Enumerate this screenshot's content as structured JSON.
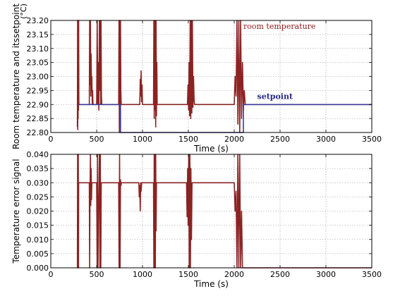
{
  "chart_data": [
    {
      "type": "line",
      "title": "",
      "xlabel": "Time (s)",
      "ylabel": "Room temperature and itssetpoint",
      "ylabel_unit": "(°C)",
      "xlim": [
        0,
        3500
      ],
      "ylim": [
        22.8,
        23.2
      ],
      "xticks": [
        "0",
        "500",
        "1000",
        "1500",
        "2000",
        "2500",
        "3000",
        "3500"
      ],
      "yticks": [
        "22.80",
        "22.85",
        "22.90",
        "22.95",
        "23.00",
        "23.05",
        "23.10",
        "23.15",
        "23.20"
      ],
      "grid": true,
      "annotations": [
        {
          "text": "room temperature",
          "color": "#8b1a1a",
          "x": 2100,
          "y": 23.17
        },
        {
          "text": "setpoint",
          "color": "#2a2a8a",
          "x": 2250,
          "y": 22.92
        }
      ],
      "series": [
        {
          "name": "room temperature",
          "color": "#8b2323",
          "x": [
            290,
            292,
            294,
            296,
            298,
            300,
            302,
            304,
            306,
            420,
            424,
            428,
            432,
            436,
            440,
            444,
            448,
            452,
            456,
            460,
            500,
            506,
            512,
            518,
            524,
            530,
            536,
            540,
            544,
            548,
            552,
            556,
            740,
            744,
            748,
            752,
            756,
            760,
            764,
            768,
            970,
            975,
            980,
            985,
            990,
            995,
            1000,
            1120,
            1124,
            1128,
            1132,
            1136,
            1140,
            1144,
            1148,
            1152,
            1156,
            1160,
            1164,
            1490,
            1496,
            1502,
            1508,
            1514,
            1520,
            1526,
            1532,
            1538,
            1544,
            1550,
            1556,
            1562,
            1568,
            2000,
            2010,
            2020,
            2030,
            2040,
            2050,
            2060,
            2070,
            2080,
            2090,
            2100,
            2110,
            2120,
            3500
          ],
          "y": [
            22.82,
            23.2,
            22.81,
            23.2,
            22.85,
            23.2,
            22.88,
            23.2,
            22.9,
            22.9,
            23.2,
            22.97,
            23.2,
            22.93,
            23.08,
            22.95,
            23.0,
            22.9,
            22.95,
            22.9,
            22.9,
            23.2,
            22.9,
            23.05,
            22.88,
            23.2,
            22.95,
            23.2,
            22.9,
            23.2,
            22.93,
            22.9,
            22.9,
            23.2,
            22.8,
            23.2,
            22.85,
            23.2,
            22.95,
            22.9,
            22.9,
            22.99,
            22.93,
            23.02,
            22.91,
            22.97,
            22.9,
            22.9,
            23.2,
            22.85,
            23.2,
            22.88,
            23.2,
            22.82,
            23.2,
            22.86,
            23.05,
            22.9,
            22.9,
            22.9,
            22.97,
            22.88,
            23.05,
            22.86,
            23.2,
            22.85,
            23.2,
            22.87,
            23.2,
            22.89,
            23.0,
            22.92,
            22.9,
            22.9,
            23.0,
            22.93,
            23.2,
            22.83,
            23.2,
            22.8,
            23.2,
            22.85,
            23.05,
            22.88,
            22.95,
            22.9,
            22.9
          ]
        },
        {
          "name": "setpoint",
          "color": "#3b3b9a",
          "x": [
            300,
            760,
            760,
            2100,
            2100,
            3500
          ],
          "y": [
            22.9,
            22.9,
            22.8,
            22.8,
            22.9,
            22.9
          ]
        }
      ]
    },
    {
      "type": "line",
      "title": "",
      "xlabel": "Time (s)",
      "ylabel": "Temperature error signal",
      "xlim": [
        0,
        3500
      ],
      "ylim": [
        0,
        0.04
      ],
      "xticks": [
        "0",
        "500",
        "1000",
        "1500",
        "2000",
        "2500",
        "3000",
        "3500"
      ],
      "yticks": [
        "0.000",
        "0.005",
        "0.010",
        "0.015",
        "0.020",
        "0.025",
        "0.030",
        "0.035",
        "0.040"
      ],
      "grid": true,
      "series": [
        {
          "name": "",
          "color": "#8b2323",
          "x": [
            290,
            292,
            294,
            296,
            298,
            300,
            302,
            304,
            420,
            424,
            428,
            432,
            436,
            440,
            444,
            448,
            452,
            500,
            505,
            510,
            515,
            520,
            525,
            530,
            535,
            540,
            545,
            550,
            740,
            745,
            750,
            755,
            760,
            765,
            770,
            780,
            960,
            965,
            970,
            975,
            980,
            985,
            990,
            1000,
            1120,
            1124,
            1128,
            1132,
            1136,
            1140,
            1144,
            1148,
            1152,
            1160,
            1480,
            1486,
            1492,
            1498,
            1504,
            1510,
            1516,
            1522,
            1528,
            1534,
            1540,
            1560,
            2000,
            2010,
            2020,
            2030,
            2040,
            2050,
            2060,
            2070,
            2080,
            2090,
            2100,
            3500
          ],
          "y": [
            0.0,
            0.04,
            0.0,
            0.04,
            0.0,
            0.04,
            0.0,
            0.03,
            0.03,
            0.0,
            0.027,
            0.04,
            0.022,
            0.035,
            0.024,
            0.03,
            0.03,
            0.03,
            0.0,
            0.04,
            0.0,
            0.02,
            0.027,
            0.04,
            0.0,
            0.04,
            0.0,
            0.03,
            0.03,
            0.0,
            0.04,
            0.0,
            0.031,
            0.029,
            0.03,
            0.03,
            0.03,
            0.025,
            0.029,
            0.02,
            0.03,
            0.027,
            0.03,
            0.03,
            0.03,
            0.0,
            0.04,
            0.0,
            0.04,
            0.0,
            0.04,
            0.013,
            0.03,
            0.03,
            0.03,
            0.018,
            0.035,
            0.015,
            0.04,
            0.0,
            0.04,
            0.0,
            0.035,
            0.01,
            0.03,
            0.03,
            0.03,
            0.02,
            0.027,
            0.0,
            0.04,
            0.0,
            0.04,
            0.0,
            0.02,
            0.0,
            0.0,
            0.0
          ]
        }
      ]
    }
  ]
}
